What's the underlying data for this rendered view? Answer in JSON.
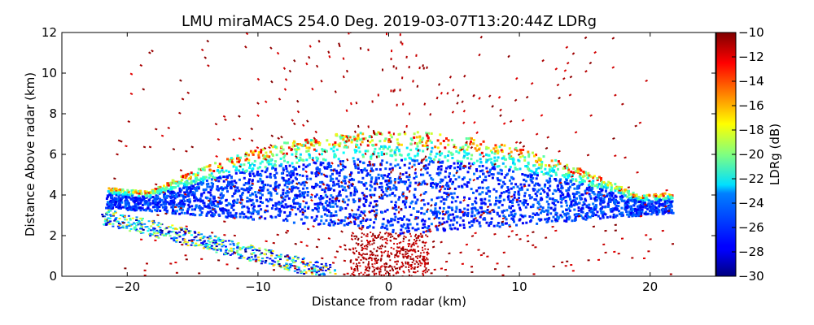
{
  "chart_data": {
    "type": "heatmap",
    "title": "LMU miraMACS 254.0 Deg. 2019-03-07T13:20:44Z  LDRg",
    "xlabel": "Distance from radar (km)",
    "ylabel": "Distance Above radar  (km)",
    "xlim": [
      -25,
      25
    ],
    "ylim": [
      0,
      12
    ],
    "xticks": [
      -20,
      -10,
      0,
      10,
      20
    ],
    "xtick_labels": [
      "−20",
      "−10",
      "0",
      "10",
      "20"
    ],
    "yticks": [
      0,
      2,
      4,
      6,
      8,
      10,
      12
    ],
    "ytick_labels": [
      "0",
      "2",
      "4",
      "6",
      "8",
      "10",
      "12"
    ],
    "colorbar": {
      "label": "LDRg (dB)",
      "range": [
        -30,
        -10
      ],
      "ticks": [
        -30,
        -28,
        -26,
        -24,
        -22,
        -20,
        -18,
        -16,
        -14,
        -12,
        -10
      ],
      "tick_labels": [
        "−30",
        "−28",
        "−26",
        "−24",
        "−22",
        "−20",
        "−18",
        "−16",
        "−14",
        "−12",
        "−10"
      ],
      "colormap": "jet"
    },
    "scan": {
      "elevation_angle_deg": 254.0,
      "max_range_km": 22,
      "dominant_ldr_db": -28,
      "cloud_layer": {
        "base_km": 2.2,
        "top_km": 7.2,
        "x_extent_km": [
          -22,
          22
        ]
      },
      "edge_ldr_db": -18,
      "clutter_ldr_db": -10
    }
  }
}
